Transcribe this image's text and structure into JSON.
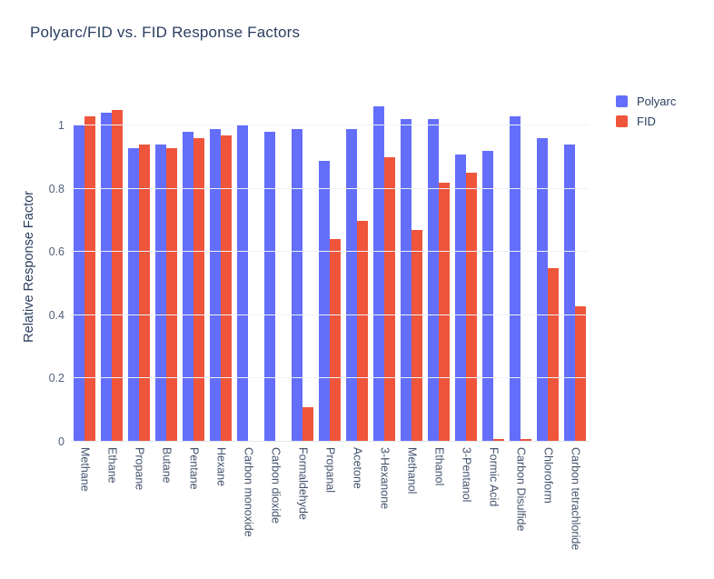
{
  "chart_data": {
    "type": "bar",
    "title": "Polyarc/FID vs. FID Response Factors",
    "xlabel": "",
    "ylabel": "Relative Response Factor",
    "categories": [
      "Methane",
      "Ethane",
      "Propane",
      "Butane",
      "Pentane",
      "Hexane",
      "Carbon monoxide",
      "Carbon dioxide",
      "Formaldehyde",
      "Propanal",
      "Acetone",
      "3-Hexanone",
      "Methanol",
      "Ethanol",
      "3-Pentanol",
      "Formic Acid",
      "Carbon Disulfide",
      "Chloroform",
      "Carbon tetrachloride"
    ],
    "series": [
      {
        "name": "Polyarc",
        "color": "#636efa",
        "values": [
          1.0,
          1.04,
          0.93,
          0.94,
          0.98,
          0.99,
          1.0,
          0.98,
          0.99,
          0.89,
          0.99,
          1.06,
          1.02,
          1.02,
          0.91,
          0.92,
          1.03,
          0.96,
          0.94
        ]
      },
      {
        "name": "FID",
        "color": "#ef553b",
        "values": [
          1.03,
          1.05,
          0.94,
          0.93,
          0.96,
          0.97,
          0.0,
          0.0,
          0.11,
          0.64,
          0.7,
          0.9,
          0.67,
          0.82,
          0.85,
          0.01,
          0.01,
          0.55,
          0.43
        ]
      }
    ],
    "yticks": [
      0,
      0.2,
      0.4,
      0.6,
      0.8,
      1
    ],
    "ytick_labels": [
      "0",
      "0.2",
      "0.4",
      "0.6",
      "0.8",
      "1"
    ],
    "ylim": [
      0,
      1.11
    ],
    "grid": true,
    "legend_position": "top-right",
    "colors": {
      "title_text": "#2a3f5f",
      "tick_text": "#51607a",
      "gridline": "#eef2f7",
      "zero_line": "#e3e8ef",
      "background": "#ffffff"
    }
  }
}
